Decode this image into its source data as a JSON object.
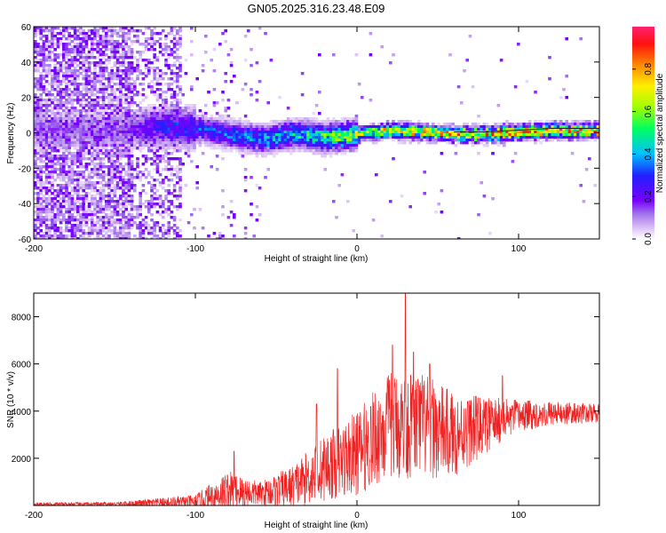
{
  "title": "GN05.2025.316.23.48.E09",
  "chart_data": [
    {
      "type": "heatmap",
      "name": "spectrogram",
      "xlabel": "Height of straight line (km)",
      "ylabel": "Frequency (Hz)",
      "xlim": [
        -200,
        150
      ],
      "ylim": [
        -60,
        60
      ],
      "xticks": [
        -200,
        -100,
        0,
        100
      ],
      "yticks": [
        -60,
        -40,
        -20,
        0,
        20,
        40,
        60
      ],
      "colorbar": {
        "label": "Normalized spectral amplitude",
        "range": [
          0,
          1
        ],
        "ticks": [
          0.0,
          0.2,
          0.4,
          0.6,
          0.8
        ]
      },
      "ridge_center_hz": [
        [
          -150,
          2
        ],
        [
          -120,
          4
        ],
        [
          -100,
          3
        ],
        [
          -80,
          0
        ],
        [
          -60,
          -3
        ],
        [
          -40,
          0
        ],
        [
          -20,
          -2
        ],
        [
          0,
          0
        ],
        [
          20,
          2
        ],
        [
          40,
          1
        ],
        [
          60,
          0
        ],
        [
          80,
          0
        ],
        [
          100,
          1
        ],
        [
          120,
          2
        ],
        [
          150,
          2
        ]
      ],
      "ridge_peak_amplitude": [
        [
          -150,
          0.15
        ],
        [
          -120,
          0.3
        ],
        [
          -100,
          0.35
        ],
        [
          -80,
          0.4
        ],
        [
          -60,
          0.45
        ],
        [
          -40,
          0.5
        ],
        [
          -20,
          0.6
        ],
        [
          0,
          0.7
        ],
        [
          20,
          0.85
        ],
        [
          40,
          0.9
        ],
        [
          60,
          0.9
        ],
        [
          80,
          0.9
        ],
        [
          100,
          0.95
        ],
        [
          120,
          0.95
        ],
        [
          150,
          0.95
        ]
      ]
    },
    {
      "type": "line",
      "name": "snr",
      "xlabel": "Height of straight line (km)",
      "ylabel": "SNR (10 * v/v)",
      "xlim": [
        -200,
        150
      ],
      "ylim": [
        0,
        9000
      ],
      "xticks": [
        -200,
        -100,
        0,
        100
      ],
      "yticks": [
        2000,
        4000,
        6000,
        8000
      ],
      "color": "#ee2222",
      "envelope_mean": [
        [
          -200,
          50
        ],
        [
          -150,
          60
        ],
        [
          -100,
          150
        ],
        [
          -80,
          600
        ],
        [
          -60,
          500
        ],
        [
          -40,
          800
        ],
        [
          -20,
          1600
        ],
        [
          0,
          2200
        ],
        [
          20,
          3400
        ],
        [
          40,
          3400
        ],
        [
          60,
          3000
        ],
        [
          80,
          3400
        ],
        [
          100,
          3800
        ],
        [
          120,
          3900
        ],
        [
          150,
          3900
        ]
      ],
      "envelope_spread": [
        [
          -200,
          80
        ],
        [
          -150,
          80
        ],
        [
          -100,
          300
        ],
        [
          -80,
          900
        ],
        [
          -60,
          500
        ],
        [
          -40,
          900
        ],
        [
          -20,
          1400
        ],
        [
          0,
          1800
        ],
        [
          20,
          2300
        ],
        [
          40,
          2300
        ],
        [
          60,
          1800
        ],
        [
          80,
          1200
        ],
        [
          100,
          700
        ],
        [
          120,
          500
        ],
        [
          150,
          400
        ]
      ],
      "notable_peaks": [
        [
          -76,
          2300
        ],
        [
          -25,
          4300
        ],
        [
          -12,
          5800
        ],
        [
          22,
          6800
        ],
        [
          30,
          9000
        ],
        [
          35,
          6500
        ],
        [
          45,
          6000
        ],
        [
          90,
          5500
        ]
      ]
    }
  ]
}
